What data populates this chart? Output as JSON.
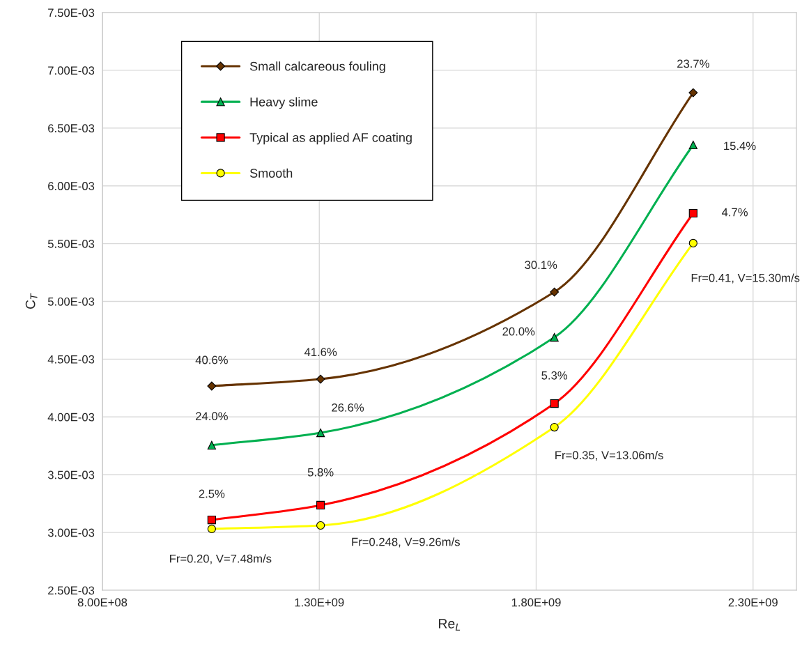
{
  "chart_data": {
    "type": "line",
    "xlabel": "Re$_{L}$",
    "ylabel": "C$_{T}$",
    "x": [
      1052000000.0,
      1303000000.0,
      1842000000.0,
      2162000000.0
    ],
    "series": [
      {
        "name": "Small calcareous fouling",
        "color": "#663300",
        "marker": "diamond",
        "values": [
          0.004267,
          0.004327,
          0.005081,
          0.006806
        ]
      },
      {
        "name": "Heavy slime",
        "color": "#00b050",
        "marker": "triangle",
        "values": [
          0.003755,
          0.003863,
          0.004689,
          0.006354
        ]
      },
      {
        "name": "Typical as applied AF coating",
        "color": "#ff0000",
        "marker": "square",
        "values": [
          0.003109,
          0.003236,
          0.004116,
          0.005763
        ]
      },
      {
        "name": "Smooth",
        "color": "#ffff00",
        "marker": "circle",
        "values": [
          0.003031,
          0.003061,
          0.003911,
          0.005504
        ]
      }
    ],
    "xlim": [
      800000000.0,
      2400000000.0
    ],
    "xticks": [
      {
        "value": 800000000.0,
        "label": "8.00E+08"
      },
      {
        "value": 1300000000.0,
        "label": "1.30E+09"
      },
      {
        "value": 1800000000.0,
        "label": "1.80E+09"
      },
      {
        "value": 2300000000.0,
        "label": "2.30E+09"
      }
    ],
    "ylim": [
      0.0025,
      0.0075
    ],
    "yticks": [
      {
        "value": 0.0025,
        "label": "2.50E-03"
      },
      {
        "value": 0.003,
        "label": "3.00E-03"
      },
      {
        "value": 0.0035,
        "label": "3.50E-03"
      },
      {
        "value": 0.004,
        "label": "4.00E-03"
      },
      {
        "value": 0.0045,
        "label": "4.50E-03"
      },
      {
        "value": 0.005,
        "label": "5.00E-03"
      },
      {
        "value": 0.0055,
        "label": "5.50E-03"
      },
      {
        "value": 0.006,
        "label": "6.00E-03"
      },
      {
        "value": 0.0065,
        "label": "6.50E-03"
      },
      {
        "value": 0.007,
        "label": "7.00E-03"
      },
      {
        "value": 0.0075,
        "label": "7.50E-03"
      }
    ],
    "grid": true,
    "legend": "top left",
    "line_style": "solid",
    "annotations": [
      {
        "text": "40.6%",
        "x": 1052000000.0,
        "y": 0.004267
      },
      {
        "text": "41.6%",
        "x": 1303000000.0,
        "y": 0.004327
      },
      {
        "text": "30.1%",
        "x": 1842000000.0,
        "y": 0.005081
      },
      {
        "text": "23.7%",
        "x": 2162000000.0,
        "y": 0.006806
      },
      {
        "text": "24.0%",
        "x": 1052000000.0,
        "y": 0.003755
      },
      {
        "text": "26.6%",
        "x": 1303000000.0,
        "y": 0.003863
      },
      {
        "text": "20.0%",
        "x": 1842000000.0,
        "y": 0.004689
      },
      {
        "text": "15.4%",
        "x": 2162000000.0,
        "y": 0.006354
      },
      {
        "text": "2.5%",
        "x": 1052000000.0,
        "y": 0.003109
      },
      {
        "text": "5.8%",
        "x": 1303000000.0,
        "y": 0.003236
      },
      {
        "text": "5.3%",
        "x": 1842000000.0,
        "y": 0.004116
      },
      {
        "text": "4.7%",
        "x": 2162000000.0,
        "y": 0.005763
      },
      "Fr=0.20, V=7.48m/s",
      "Fr=0.248, V=9.26m/s",
      "Fr=0.35, V=13.06m/s",
      "Fr=0.41, V=15.30m/s"
    ]
  }
}
